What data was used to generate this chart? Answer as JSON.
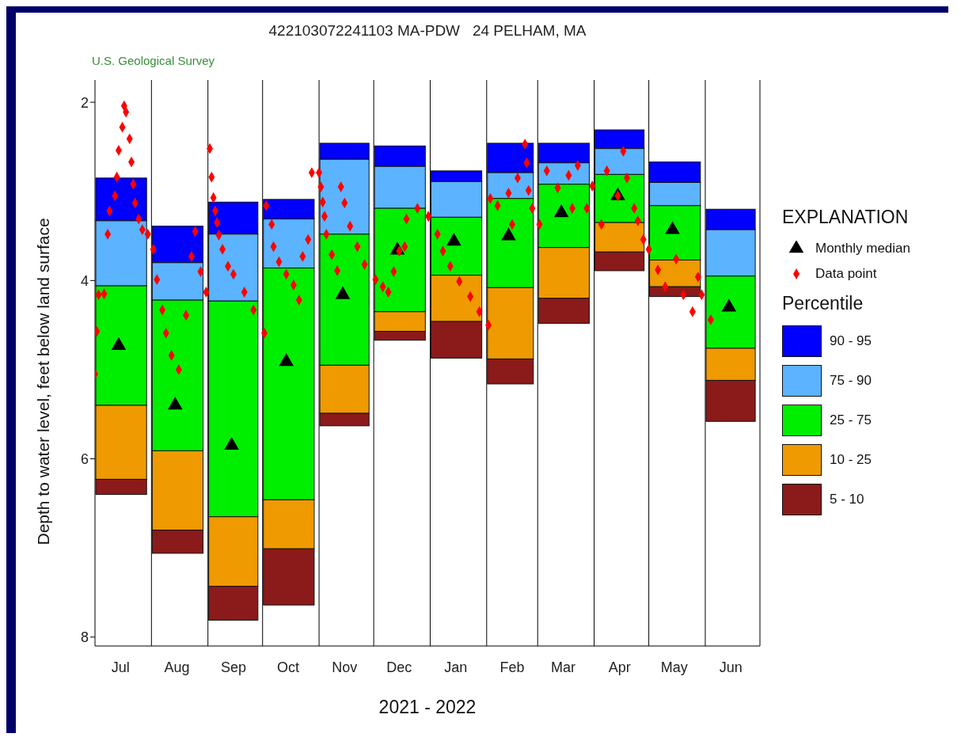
{
  "chart_data": {
    "type": "bar",
    "title": "422103072241103 MA-PDW   24 PELHAM, MA",
    "subtitle": "U.S. Geological Survey",
    "xlabel": "2021 - 2022",
    "ylabel": "Depth to water level, feet below land surface",
    "legend_title": "EXPLANATION",
    "annotations": [
      "Percentile"
    ],
    "x": [
      "2021-07",
      "2021-08",
      "2021-09",
      "2021-10",
      "2021-11",
      "2021-12",
      "2022-01",
      "2022-02",
      "2022-03",
      "2022-04",
      "2022-05",
      "2022-06"
    ],
    "xlim": [
      "2021-07-01",
      "2022-07-01"
    ],
    "xticks": [
      {
        "value": "2021-07-15",
        "label": "Jul"
      },
      {
        "value": "2021-08-15",
        "label": "Aug"
      },
      {
        "value": "2021-09-15",
        "label": "Sep"
      },
      {
        "value": "2021-10-15",
        "label": "Oct"
      },
      {
        "value": "2021-11-15",
        "label": "Nov"
      },
      {
        "value": "2021-12-15",
        "label": "Dec"
      },
      {
        "value": "2022-01-15",
        "label": "Jan"
      },
      {
        "value": "2022-02-15",
        "label": "Feb"
      },
      {
        "value": "2022-03-15",
        "label": "Mar"
      },
      {
        "value": "2022-04-15",
        "label": "Apr"
      },
      {
        "value": "2022-05-15",
        "label": "May"
      },
      {
        "value": "2022-06-15",
        "label": "Jun"
      }
    ],
    "series": [
      {
        "name": "90 - 95",
        "color": "#0000ff",
        "base": [
          2.85,
          3.39,
          3.12,
          3.09,
          2.46,
          2.49,
          2.77,
          2.46,
          2.46,
          2.31,
          2.67,
          3.2
        ],
        "values": [
          0.48,
          0.41,
          0.36,
          0.22,
          0.18,
          0.23,
          0.12,
          0.33,
          0.22,
          0.21,
          0.23,
          0.23
        ]
      },
      {
        "name": "75 - 90",
        "color": "#5cb3ff",
        "base": [
          3.33,
          3.8,
          3.48,
          3.31,
          2.64,
          2.72,
          2.89,
          2.79,
          2.68,
          2.52,
          2.9,
          3.43
        ],
        "values": [
          0.73,
          0.42,
          0.75,
          0.55,
          0.84,
          0.47,
          0.4,
          0.29,
          0.24,
          0.29,
          0.26,
          0.52
        ]
      },
      {
        "name": "25 - 75",
        "color": "#00ee00",
        "base": [
          4.06,
          4.22,
          4.23,
          3.86,
          3.48,
          3.19,
          3.29,
          3.08,
          2.92,
          2.81,
          3.16,
          3.95
        ],
        "values": [
          1.34,
          1.69,
          2.42,
          2.6,
          1.47,
          1.16,
          0.65,
          1.0,
          0.71,
          0.54,
          0.61,
          0.81
        ]
      },
      {
        "name": "10 - 25",
        "color": "#ee9a00",
        "base": [
          5.4,
          5.91,
          6.65,
          6.46,
          4.95,
          4.35,
          3.94,
          4.08,
          3.63,
          3.35,
          3.77,
          4.76
        ],
        "values": [
          0.83,
          0.89,
          0.78,
          0.55,
          0.54,
          0.22,
          0.52,
          0.8,
          0.57,
          0.33,
          0.3,
          0.36
        ]
      },
      {
        "name": "5 - 10",
        "color": "#8b1a1a",
        "base": [
          6.23,
          6.8,
          7.43,
          7.01,
          5.49,
          4.57,
          4.46,
          4.88,
          4.2,
          3.68,
          4.07,
          5.12
        ],
        "values": [
          0.17,
          0.26,
          0.38,
          0.63,
          0.14,
          0.1,
          0.41,
          0.28,
          0.28,
          0.21,
          0.11,
          0.46
        ]
      },
      {
        "name": "Monthly median",
        "type": "scatter",
        "marker": "triangle",
        "color": "#000000",
        "x": [
          "2021-07-14",
          "2021-08-14",
          "2021-09-14",
          "2021-10-14",
          "2021-11-14",
          "2021-12-14",
          "2022-01-14",
          "2022-02-13",
          "2022-03-14",
          "2022-04-14",
          "2022-05-14",
          "2022-06-14"
        ],
        "values": [
          4.73,
          5.4,
          5.85,
          4.91,
          4.16,
          3.66,
          3.56,
          3.5,
          3.24,
          3.05,
          3.43,
          4.3
        ]
      },
      {
        "name": "Data point",
        "type": "scatter",
        "marker": "diamond",
        "color": "#ff0000",
        "x": [
          "2021-07-01",
          "2021-07-02",
          "2021-07-03",
          "2021-07-06",
          "2021-07-08",
          "2021-07-09",
          "2021-07-12",
          "2021-07-13",
          "2021-07-14",
          "2021-07-16",
          "2021-07-17",
          "2021-07-18",
          "2021-07-20",
          "2021-07-21",
          "2021-07-22",
          "2021-07-23",
          "2021-07-25",
          "2021-07-27",
          "2021-07-30",
          "2021-08-02",
          "2021-08-04",
          "2021-08-07",
          "2021-08-09",
          "2021-08-12",
          "2021-08-16",
          "2021-08-20",
          "2021-08-23",
          "2021-08-25",
          "2021-08-28",
          "2021-08-31",
          "2021-09-02",
          "2021-09-03",
          "2021-09-04",
          "2021-09-05",
          "2021-09-06",
          "2021-09-07",
          "2021-09-09",
          "2021-09-12",
          "2021-09-15",
          "2021-09-21",
          "2021-09-26",
          "2021-10-02",
          "2021-10-03",
          "2021-10-06",
          "2021-10-07",
          "2021-10-10",
          "2021-10-14",
          "2021-10-18",
          "2021-10-21",
          "2021-10-23",
          "2021-10-26",
          "2021-10-28",
          "2021-11-01",
          "2021-11-02",
          "2021-11-03",
          "2021-11-04",
          "2021-11-05",
          "2021-11-08",
          "2021-11-11",
          "2021-11-13",
          "2021-11-15",
          "2021-11-18",
          "2021-11-22",
          "2021-11-26",
          "2021-12-02",
          "2021-12-06",
          "2021-12-09",
          "2021-12-12",
          "2021-12-15",
          "2021-12-18",
          "2021-12-19",
          "2021-12-25",
          "2021-12-31",
          "2022-01-05",
          "2022-01-08",
          "2022-01-12",
          "2022-01-17",
          "2022-01-23",
          "2022-01-28",
          "2022-02-02",
          "2022-02-03",
          "2022-02-07",
          "2022-02-13",
          "2022-02-15",
          "2022-02-18",
          "2022-02-22",
          "2022-02-23",
          "2022-02-24",
          "2022-02-26",
          "2022-03-02",
          "2022-03-06",
          "2022-03-12",
          "2022-03-18",
          "2022-03-20",
          "2022-03-23",
          "2022-03-28",
          "2022-03-31",
          "2022-04-05",
          "2022-04-08",
          "2022-04-14",
          "2022-04-17",
          "2022-04-19",
          "2022-04-23",
          "2022-04-25",
          "2022-04-28",
          "2022-05-01",
          "2022-05-06",
          "2022-05-10",
          "2022-05-16",
          "2022-05-20",
          "2022-05-25",
          "2022-05-28",
          "2022-05-30",
          "2022-06-04"
        ],
        "values": [
          5.05,
          4.57,
          4.16,
          4.15,
          3.48,
          3.22,
          3.05,
          2.84,
          2.54,
          2.28,
          2.04,
          2.11,
          2.41,
          2.67,
          2.92,
          3.13,
          3.31,
          3.43,
          3.48,
          3.65,
          3.99,
          4.33,
          4.59,
          4.84,
          5.0,
          4.39,
          3.73,
          3.45,
          3.9,
          4.13,
          2.52,
          2.84,
          3.07,
          3.22,
          3.35,
          3.49,
          3.65,
          3.84,
          3.93,
          4.13,
          4.33,
          4.59,
          3.16,
          3.37,
          3.62,
          3.79,
          3.93,
          4.05,
          4.22,
          3.73,
          3.54,
          2.79,
          2.79,
          2.95,
          3.12,
          3.28,
          3.48,
          3.71,
          3.89,
          2.95,
          3.13,
          3.39,
          3.62,
          3.82,
          3.99,
          4.07,
          4.13,
          3.9,
          3.67,
          3.62,
          3.31,
          3.19,
          3.28,
          3.48,
          3.67,
          3.84,
          4.01,
          4.18,
          4.35,
          4.5,
          3.08,
          3.16,
          3.02,
          3.37,
          2.85,
          2.47,
          2.68,
          2.99,
          3.19,
          3.37,
          2.77,
          2.96,
          2.82,
          3.19,
          2.71,
          3.19,
          2.94,
          3.37,
          2.77,
          3.05,
          2.55,
          2.85,
          3.19,
          3.33,
          3.54,
          3.65,
          3.88,
          4.07,
          3.76,
          4.16,
          4.35,
          3.96,
          4.16,
          4.44
        ]
      }
    ],
    "ref_lines": [
      {
        "axis": "x",
        "value": "2021-08-01",
        "color": "#000000"
      },
      {
        "axis": "x",
        "value": "2021-09-01",
        "color": "#000000"
      },
      {
        "axis": "x",
        "value": "2021-10-01",
        "color": "#000000"
      },
      {
        "axis": "x",
        "value": "2021-11-01",
        "color": "#000000"
      },
      {
        "axis": "x",
        "value": "2021-12-01",
        "color": "#000000"
      },
      {
        "axis": "x",
        "value": "2022-01-01",
        "color": "#000000"
      },
      {
        "axis": "x",
        "value": "2022-02-01",
        "color": "#000000"
      },
      {
        "axis": "x",
        "value": "2022-03-01",
        "color": "#000000"
      },
      {
        "axis": "x",
        "value": "2022-04-01",
        "color": "#000000"
      },
      {
        "axis": "x",
        "value": "2022-05-01",
        "color": "#000000"
      },
      {
        "axis": "x",
        "value": "2022-06-01",
        "color": "#000000"
      },
      {
        "axis": "x",
        "value": "2022-07-01",
        "color": "#000000"
      }
    ],
    "ylim": [
      8.1,
      1.75
    ],
    "yticks": [
      2,
      4,
      6,
      8
    ],
    "legend": "right"
  }
}
